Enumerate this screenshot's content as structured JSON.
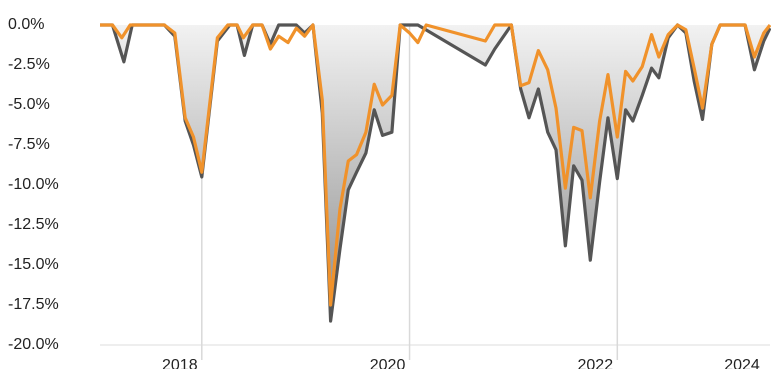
{
  "chart_data": {
    "type": "area-line",
    "xlim": [
      2017.02,
      2023.47
    ],
    "xticks": [
      2018,
      2020,
      2022,
      2024
    ],
    "ylim": [
      -20,
      0
    ],
    "yticks": [
      {
        "value": 0,
        "label": "0.0%"
      },
      {
        "value": -2.5,
        "label": "-2.5%"
      },
      {
        "value": -5,
        "label": "-5.0%"
      },
      {
        "value": -7.5,
        "label": "-7.5%"
      },
      {
        "value": -10,
        "label": "-10.0%"
      },
      {
        "value": -12.5,
        "label": "-12.5%"
      },
      {
        "value": -15,
        "label": "-15.0%"
      },
      {
        "value": -17.5,
        "label": "-17.5%"
      },
      {
        "value": -20,
        "label": "-20.0%"
      }
    ],
    "grid": true,
    "series": [
      {
        "color": "#555555",
        "fill": true,
        "x": [
          2017.02,
          2017.14,
          2017.25,
          2017.33,
          2017.64,
          2017.74,
          2017.84,
          2017.92,
          2018.0,
          2018.15,
          2018.27,
          2018.34,
          2018.41,
          2018.49,
          2018.58,
          2018.66,
          2018.74,
          2018.91,
          2018.99,
          2019.07,
          2019.16,
          2019.24,
          2019.33,
          2019.41,
          2019.49,
          2019.58,
          2019.66,
          2019.74,
          2019.83,
          2019.91,
          2020.08,
          2020.73,
          2020.82,
          2020.98,
          2021.07,
          2021.15,
          2021.24,
          2021.33,
          2021.41,
          2021.5,
          2021.58,
          2021.66,
          2021.74,
          2021.83,
          2021.91,
          2022.0,
          2022.08,
          2022.15,
          2022.24,
          2022.33,
          2022.4,
          2022.49,
          2022.58,
          2022.66,
          2022.74,
          2022.82,
          2022.91,
          2022.99,
          2023.23,
          2023.32,
          2023.41,
          2023.47
        ],
        "values": [
          0,
          0,
          -2.3,
          0,
          0,
          -0.7,
          -6,
          -7.5,
          -9.5,
          -1,
          0,
          0,
          -1.9,
          0,
          0,
          -1.2,
          0,
          0,
          -0.5,
          0,
          -5.5,
          -18.5,
          -14,
          -10.3,
          -9.2,
          -8,
          -5.3,
          -6.9,
          -6.7,
          0,
          0,
          -2.5,
          -1.5,
          0,
          -4,
          -5.8,
          -4,
          -6.7,
          -7.8,
          -13.8,
          -8.8,
          -9.7,
          -14.7,
          -9.8,
          -5.8,
          -9.6,
          -5.3,
          -6,
          -4.4,
          -2.7,
          -3.3,
          -0.8,
          0,
          -0.5,
          -3.5,
          -5.9,
          -1.2,
          0,
          0,
          -2.8,
          -1,
          -0.2
        ]
      },
      {
        "color": "#f0922b",
        "fill": false,
        "x": [
          2017.02,
          2017.14,
          2017.23,
          2017.31,
          2017.64,
          2017.74,
          2017.84,
          2017.92,
          2018.0,
          2018.15,
          2018.25,
          2018.34,
          2018.4,
          2018.49,
          2018.58,
          2018.66,
          2018.74,
          2018.83,
          2018.91,
          2018.99,
          2019.07,
          2019.16,
          2019.24,
          2019.33,
          2019.41,
          2019.49,
          2019.58,
          2019.66,
          2019.74,
          2019.83,
          2019.91,
          2020.0,
          2020.08,
          2020.16,
          2020.73,
          2020.82,
          2020.98,
          2021.07,
          2021.15,
          2021.24,
          2021.33,
          2021.41,
          2021.5,
          2021.58,
          2021.66,
          2021.74,
          2021.83,
          2021.91,
          2022.0,
          2022.08,
          2022.15,
          2022.24,
          2022.33,
          2022.4,
          2022.49,
          2022.58,
          2022.66,
          2022.74,
          2022.82,
          2022.91,
          2022.99,
          2023.23,
          2023.32,
          2023.41,
          2023.47
        ],
        "values": [
          0,
          0,
          -0.8,
          0,
          0,
          -0.5,
          -5.8,
          -7,
          -9.2,
          -0.8,
          0,
          0,
          -0.8,
          0,
          0,
          -1.5,
          -0.7,
          -1.1,
          -0.2,
          -0.7,
          0,
          -4.7,
          -17.5,
          -11.5,
          -8.5,
          -8.1,
          -6.7,
          -3.7,
          -5,
          -4.4,
          0,
          -0.5,
          -1.1,
          0,
          -1,
          0,
          0,
          -3.8,
          -3.6,
          -1.6,
          -2.8,
          -5.2,
          -10.2,
          -6.4,
          -6.6,
          -10.8,
          -6,
          -3.1,
          -7,
          -2.9,
          -3.5,
          -2.6,
          -0.6,
          -2,
          -0.6,
          0,
          -0.3,
          -2.7,
          -5.2,
          -1.2,
          0,
          0,
          -2,
          -0.5,
          0
        ]
      }
    ]
  }
}
